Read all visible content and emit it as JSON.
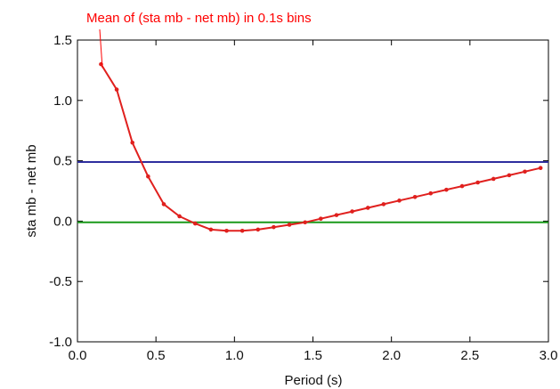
{
  "chart_data": {
    "type": "line",
    "xlabel": "Period (s)",
    "ylabel": "sta mb - net mb",
    "xlim": [
      0.0,
      3.0
    ],
    "ylim": [
      -1.0,
      1.5
    ],
    "xticks": [
      0.0,
      0.5,
      1.0,
      1.5,
      2.0,
      2.5,
      3.0
    ],
    "xtick_labels": [
      "0.0",
      "0.5",
      "1.0",
      "1.5",
      "2.0",
      "2.5",
      "3.0"
    ],
    "yticks": [
      -1.0,
      -0.5,
      0.0,
      0.5,
      1.0,
      1.5
    ],
    "ytick_labels": [
      "-1.0",
      "-0.5",
      "0.0",
      "0.5",
      "1.0",
      "1.5"
    ],
    "grid": false,
    "annotation": {
      "text": "Mean of (sta mb - net mb) in 0.1s bins",
      "color": "#ff0000",
      "points_to": [
        0.17,
        1.27
      ]
    },
    "hlines": [
      {
        "y": 0.49,
        "color": "#2e2e9e"
      },
      {
        "y": -0.01,
        "color": "#1a9a1a"
      }
    ],
    "series": [
      {
        "color": "#e0201e",
        "x": [
          0.15,
          0.25,
          0.35,
          0.45,
          0.55,
          0.65,
          0.75,
          0.85,
          0.95,
          1.05,
          1.15,
          1.25,
          1.35,
          1.45,
          1.55,
          1.65,
          1.75,
          1.85,
          1.95,
          2.05,
          2.15,
          2.25,
          2.35,
          2.45,
          2.55,
          2.65,
          2.75,
          2.85,
          2.95
        ],
        "y": [
          1.3,
          1.09,
          0.65,
          0.37,
          0.14,
          0.04,
          -0.02,
          -0.07,
          -0.08,
          -0.08,
          -0.07,
          -0.05,
          -0.03,
          -0.01,
          0.02,
          0.05,
          0.08,
          0.11,
          0.14,
          0.17,
          0.2,
          0.23,
          0.26,
          0.29,
          0.32,
          0.35,
          0.38,
          0.41,
          0.44
        ]
      }
    ]
  }
}
